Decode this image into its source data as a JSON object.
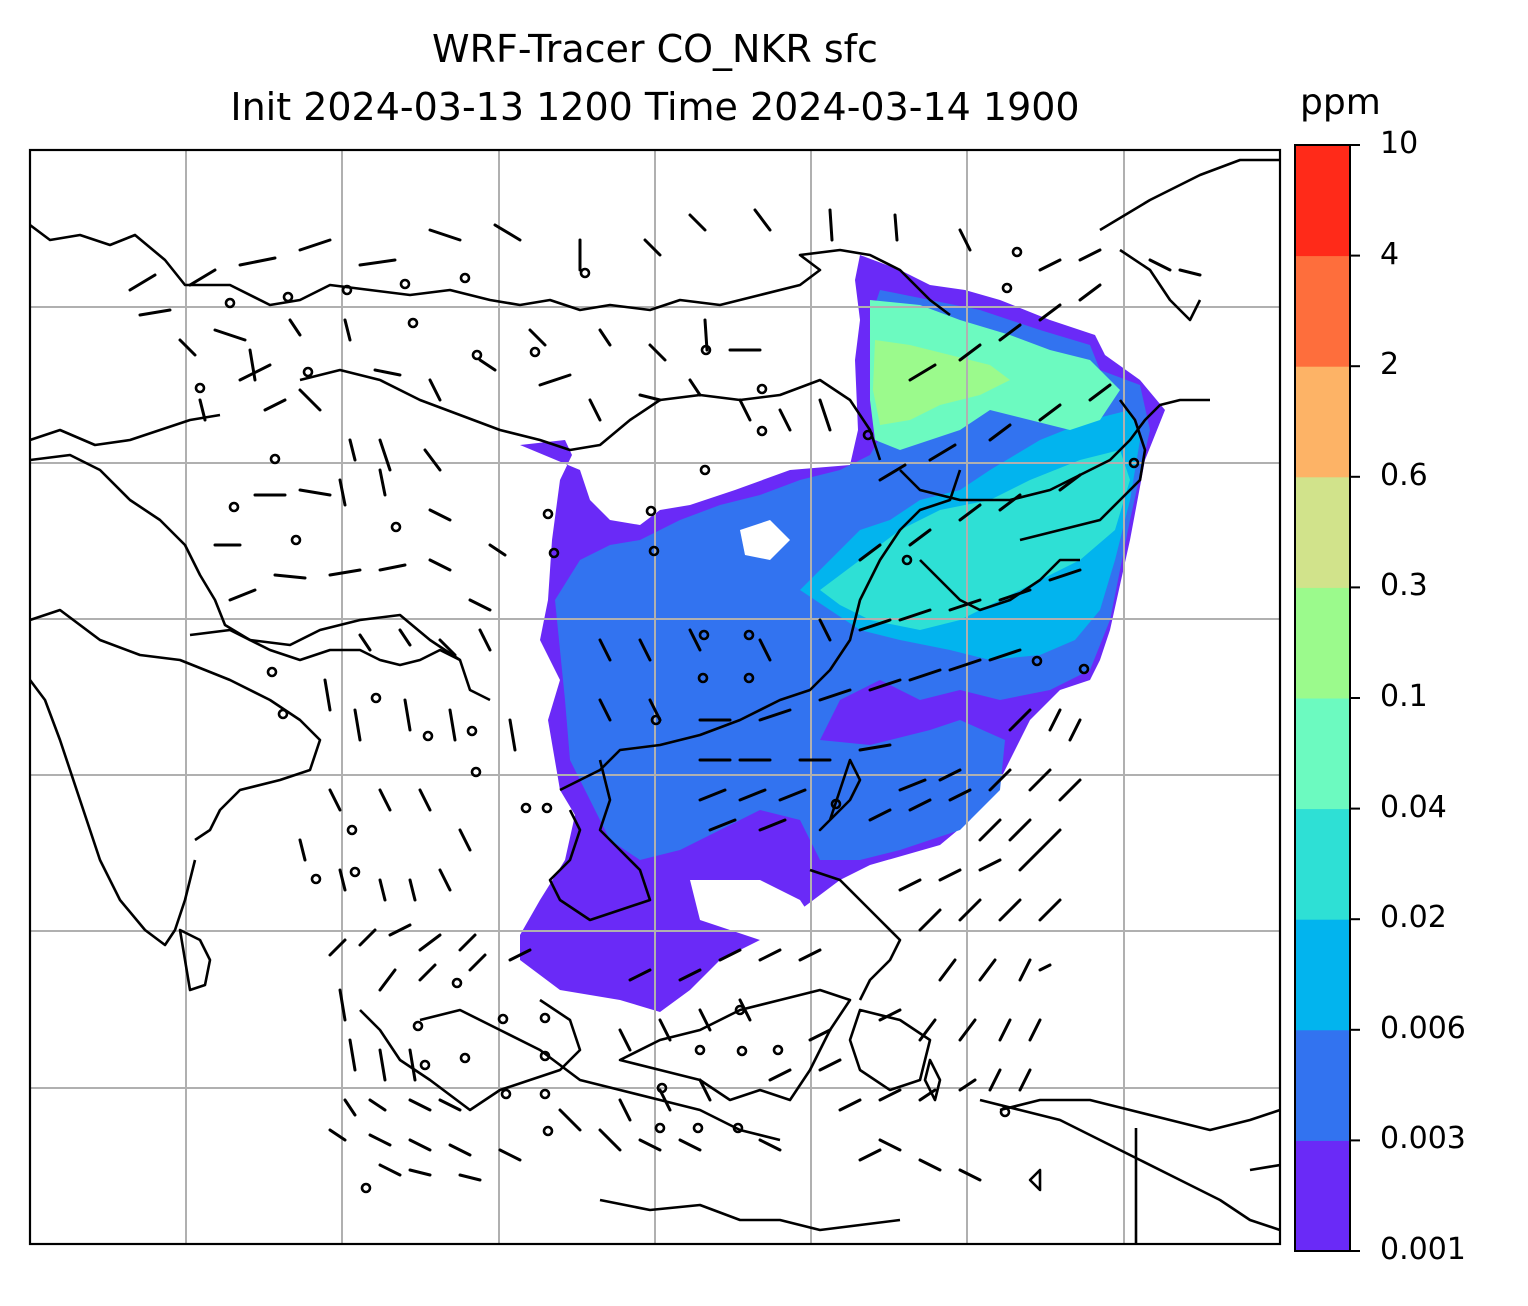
{
  "title": {
    "line1": "WRF-Tracer CO_NKR sfc",
    "line2": "Init 2024-03-13 1200 Time 2024-03-14 1900"
  },
  "colorbar": {
    "unit": "ppm",
    "levels": [
      "0.001",
      "0.003",
      "0.006",
      "0.02",
      "0.04",
      "0.1",
      "0.3",
      "0.6",
      "2",
      "4",
      "10"
    ],
    "colors": [
      "#6a2af7",
      "#3273f0",
      "#02b4ee",
      "#2ee0d5",
      "#6cfac0",
      "#9bfa8c",
      "#d1e38b",
      "#fdb366",
      "#fe6e3c",
      "#ff2a19"
    ]
  },
  "map": {
    "plume_colors": {
      "low": "#6a2af7",
      "mid_low": "#3273f0",
      "mid": "#02b4ee",
      "high": "#2ee0d5",
      "higher": "#6cfac0",
      "peak": "#9bfa8c"
    },
    "grid_color": "#b0b0b0",
    "coast_color": "#000000"
  }
}
